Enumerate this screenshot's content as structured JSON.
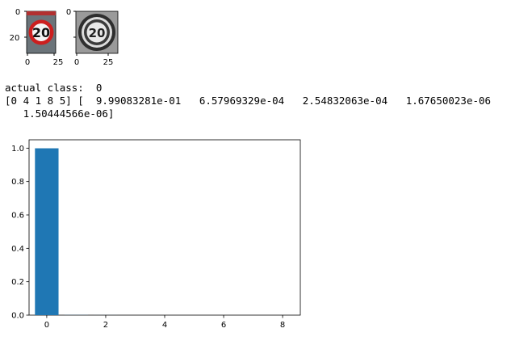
{
  "thumbnails": [
    {
      "name": "original-sign",
      "x_ticks": [
        "0",
        "25"
      ],
      "y_ticks": [
        "0",
        "20"
      ]
    },
    {
      "name": "grayscale-sign",
      "x_ticks": [
        "0",
        "25"
      ],
      "y_ticks": [
        "0",
        "20"
      ]
    }
  ],
  "sign_text": "20",
  "output": {
    "line1": "actual class:  0",
    "line2": "[0 4 1 8 5] [  9.99083281e-01   6.57969329e-04   2.54832063e-04   1.67650023e-06",
    "line3": "   1.50444566e-06]"
  },
  "colors": {
    "bar": "#1f77b4",
    "sign_red": "#cc1f1f"
  },
  "chart_data": {
    "type": "bar",
    "x": [
      0,
      1,
      2,
      3,
      4
    ],
    "values": [
      0.999083281,
      0.000657969329,
      0.000254832063,
      1.67650023e-06,
      1.50444566e-06
    ],
    "xlim": [
      -0.6,
      8.6
    ],
    "ylim": [
      0,
      1.05
    ],
    "x_ticks": [
      0,
      2,
      4,
      6,
      8
    ],
    "y_ticks": [
      0.0,
      0.2,
      0.4,
      0.6,
      0.8,
      1.0
    ],
    "grid": false,
    "title": "",
    "xlabel": "",
    "ylabel": ""
  }
}
